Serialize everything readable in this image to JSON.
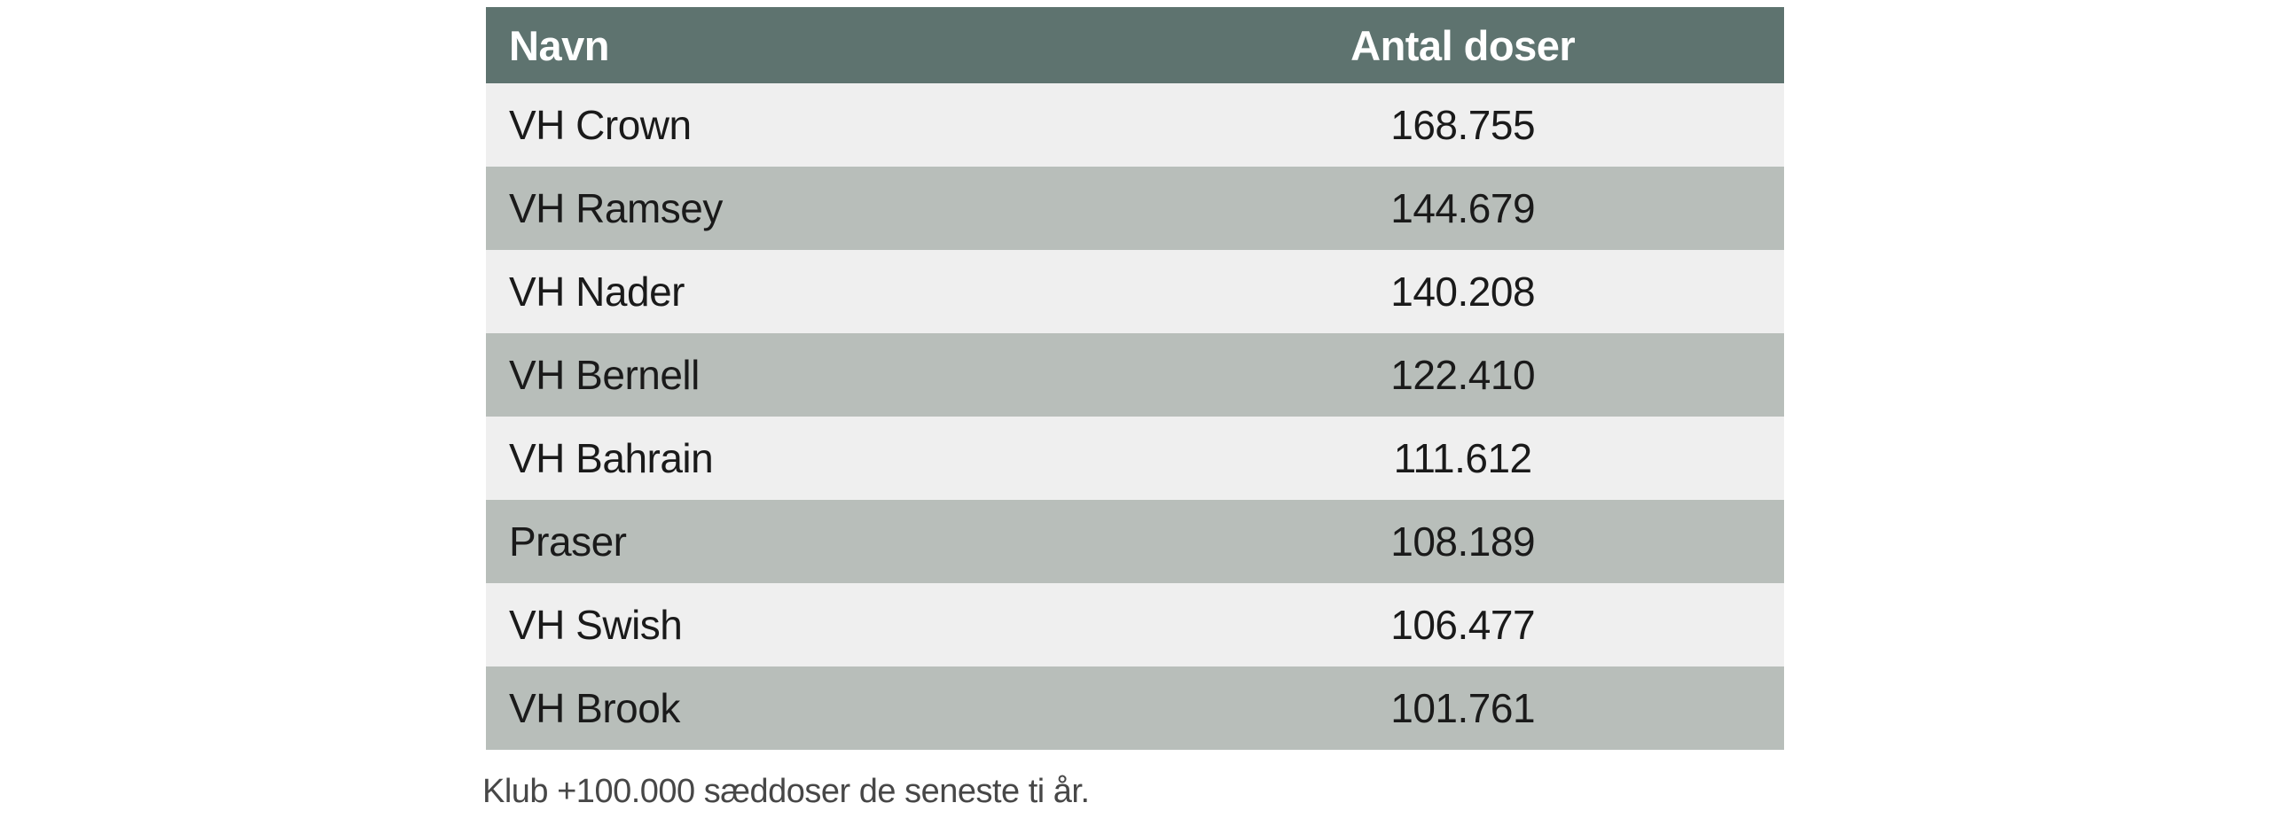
{
  "chart_data": {
    "type": "table",
    "title": "",
    "columns": [
      "Navn",
      "Antal doser"
    ],
    "rows": [
      {
        "name": "VH Crown",
        "doses": "168.755"
      },
      {
        "name": "VH Ramsey",
        "doses": "144.679"
      },
      {
        "name": "VH Nader",
        "doses": "140.208"
      },
      {
        "name": "VH Bernell",
        "doses": "122.410"
      },
      {
        "name": "VH Bahrain",
        "doses": "111.612"
      },
      {
        "name": "Praser",
        "doses": "108.189"
      },
      {
        "name": "VH Swish",
        "doses": "106.477"
      },
      {
        "name": "VH Brook",
        "doses": "101.761"
      }
    ],
    "caption": "Klub +100.000 sæddoser de seneste ti år.",
    "layout_hints": {
      "zebra_striping": true,
      "value_alignment": "center",
      "name_alignment": "left"
    }
  },
  "colors": {
    "header_bg": "#5e736f",
    "header_text": "#ffffff",
    "row_light": "#efefef",
    "row_dark": "#b8beba",
    "body_text": "#1a1a1a",
    "caption_text": "#474747",
    "page_bg": "#ffffff"
  }
}
